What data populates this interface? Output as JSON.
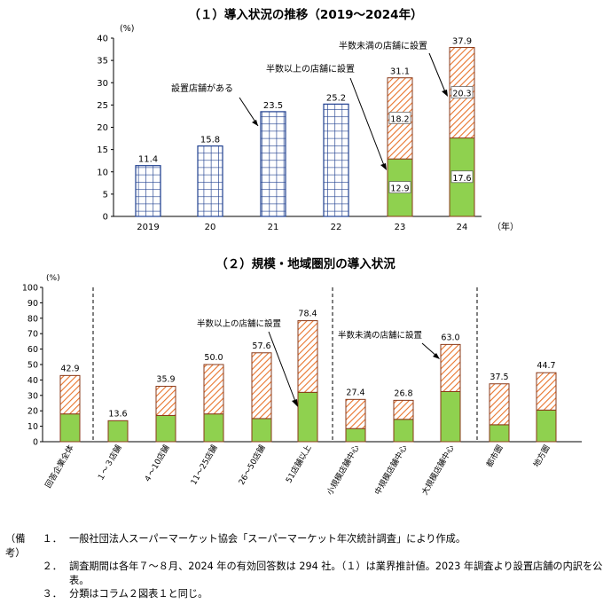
{
  "chart_data": [
    {
      "type": "bar",
      "title": "（１）導入状況の推移（2019～2024年）",
      "ylabel": "(%)",
      "xunit": "（年）",
      "ylim": [
        0,
        40
      ],
      "yticks": [
        "0",
        "5",
        "10",
        "15",
        "20",
        "25",
        "30",
        "35",
        "40"
      ],
      "categories": [
        "2019",
        "20",
        "21",
        "22",
        "23",
        "24"
      ],
      "totals": [
        11.4,
        15.8,
        23.5,
        25.2,
        31.1,
        37.9
      ],
      "total_labels": [
        "11.4",
        "15.8",
        "23.5",
        "25.2",
        "31.1",
        "37.9"
      ],
      "series": [
        {
          "name": "設置店舗がある",
          "values": [
            11.4,
            15.8,
            23.5,
            25.2,
            null,
            null
          ],
          "labels": [
            "",
            "",
            "",
            "",
            "",
            ""
          ]
        },
        {
          "name": "半数以上の店舗に設置",
          "values": [
            null,
            null,
            null,
            null,
            12.9,
            17.6
          ],
          "labels": [
            "",
            "",
            "",
            "",
            "12.9",
            "17.6"
          ]
        },
        {
          "name": "半数未満の店舗に設置",
          "values": [
            null,
            null,
            null,
            null,
            18.2,
            20.3
          ],
          "labels": [
            "",
            "",
            "",
            "",
            "18.2",
            "20.3"
          ]
        }
      ],
      "annotations": {
        "present": "設置店舗がある",
        "majority": "半数以上の店舗に設置",
        "minority": "半数未満の店舗に設置"
      }
    },
    {
      "type": "bar",
      "title": "（２）規模・地域圏別の導入状況",
      "ylabel": "(%)",
      "ylim": [
        0,
        100
      ],
      "yticks": [
        "0",
        "10",
        "20",
        "30",
        "40",
        "50",
        "60",
        "70",
        "80",
        "90",
        "100"
      ],
      "categories": [
        "回答企業全体",
        "１～３店舗",
        "４～10店舗",
        "11～25店舗",
        "26～50店舗",
        "51店舗以上",
        "小規模店舗中心",
        "中規模店舗中心",
        "大規模店舗中心",
        "都市圏",
        "地方圏"
      ],
      "totals": [
        42.9,
        13.6,
        35.9,
        50.0,
        57.6,
        78.4,
        27.4,
        26.8,
        63.0,
        37.5,
        44.7
      ],
      "total_labels": [
        "42.9",
        "13.6",
        "35.9",
        "50.0",
        "57.6",
        "78.4",
        "27.4",
        "26.8",
        "63.0",
        "37.5",
        "44.7"
      ],
      "series": [
        {
          "name": "半数以上の店舗に設置",
          "values": [
            18,
            13.6,
            17,
            18,
            15,
            32,
            8.5,
            14.5,
            32.5,
            11,
            20.5
          ]
        },
        {
          "name": "半数未満の店舗に設置",
          "values": [
            24.9,
            0,
            18.9,
            32.0,
            42.6,
            46.4,
            18.9,
            12.3,
            30.5,
            26.5,
            24.2
          ]
        }
      ],
      "annotations": {
        "majority": "半数以上の店舗に設置",
        "minority": "半数未満の店舗に設置"
      }
    }
  ],
  "notes": {
    "head": "（備考）",
    "items": [
      {
        "num": "１．",
        "text": "一般社団法人スーパーマーケット協会「スーパーマーケット年次統計調査」により作成。"
      },
      {
        "num": "２．",
        "text": "調査期間は各年７～８月、2024 年の有効回答数は 294 社。（１）は業界推計値。2023 年調査より設置店舗の内訳を公表。"
      },
      {
        "num": "３．",
        "text": "分類はコラム２図表１と同じ。"
      }
    ]
  },
  "colors": {
    "grid_bar_fill": "#ffffff",
    "grid_bar_line": "#1f3f8f",
    "green": "#8fd14f",
    "hatch": "#e8742c",
    "axis": "#000000"
  }
}
